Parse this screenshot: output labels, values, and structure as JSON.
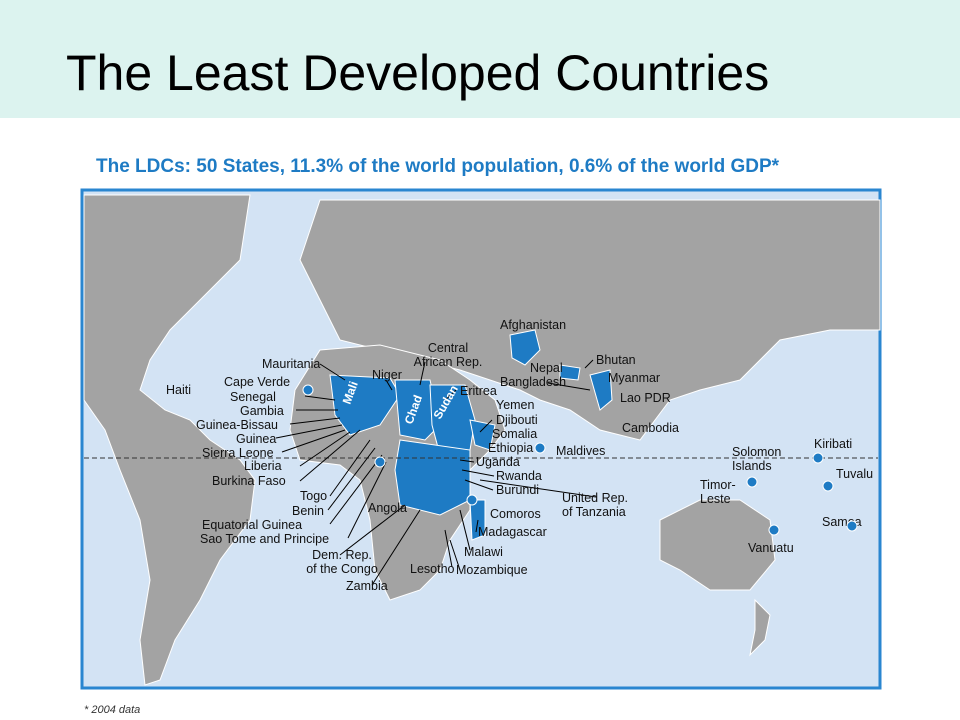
{
  "header": {
    "title": "The Least Developed Countries"
  },
  "map": {
    "title": "The LDCs: 50 States, 11.3% of the world population, 0.6% of the world GDP*",
    "footnote": "* 2004 data",
    "labels": [
      "Afghanistan",
      "Nepal",
      "Bhutan",
      "Bangladesh",
      "Myanmar",
      "Lao PDR",
      "Cambodia",
      [
        "Central",
        "African Rep."
      ],
      "Mauritania",
      "Niger",
      "Cape Verde",
      "Senegal",
      "Gambia",
      "Guinea-Bissau",
      "Guinea",
      "Sierra Leone",
      "Liberia",
      "Burkina Faso",
      "Togo",
      "Benin",
      "Equatorial Guinea",
      "Sao Tome and Principe",
      "Angola",
      [
        "Dem. Rep.",
        "of the Congo"
      ],
      "Zambia",
      "Lesotho",
      "Malawi",
      "Mozambique",
      "Madagascar",
      "Comoros",
      [
        "United Rep.",
        "of Tanzania"
      ],
      "Burundi",
      "Rwanda",
      "Uganda",
      "Ethiopia",
      "Somalia",
      "Djibouti",
      "Yemen",
      "Eritrea",
      "Maldives",
      "Haiti",
      [
        "Solomon",
        "Islands"
      ],
      [
        "Timor-",
        "Leste"
      ],
      "Kiribati",
      "Tuvalu",
      "Samoa",
      "Vanuatu"
    ],
    "inner_labels": [
      "Mali",
      "Chad",
      "Sudan"
    ]
  }
}
